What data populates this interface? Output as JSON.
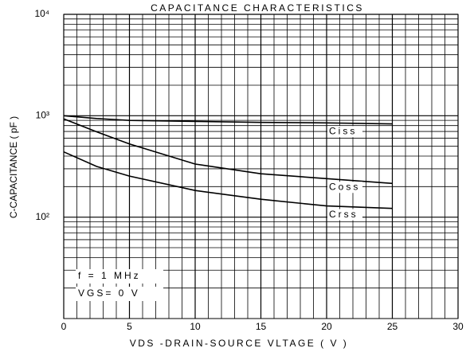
{
  "chart_data": {
    "type": "line",
    "title": "CAPACITANCE CHARACTERISTICS",
    "xlabel": "VDS -DRAIN-SOURCE VLTAGE ( V )",
    "ylabel": "C-CAPACITANCE ( pF )",
    "annotations": [
      "f = 1 MHz",
      "VGS= 0 V"
    ],
    "x": [
      0,
      2.5,
      5,
      10,
      15,
      20,
      25
    ],
    "series": [
      {
        "name": "Ciss",
        "color": "#000000",
        "values": [
          1000,
          940,
          900,
          880,
          860,
          850,
          830
        ]
      },
      {
        "name": "Coss",
        "color": "#000000",
        "values": [
          930,
          694,
          527,
          334,
          268,
          240,
          215
        ]
      },
      {
        "name": "Crss",
        "color": "#000000",
        "values": [
          440,
          316,
          254,
          183,
          150,
          129,
          122
        ]
      }
    ],
    "xlim": [
      0,
      30
    ],
    "xticks": [
      0,
      5,
      10,
      15,
      20,
      25,
      30
    ],
    "ylim": [
      10,
      10000
    ],
    "yticks": [
      {
        "value": 100,
        "label": "10²"
      },
      {
        "value": 1000,
        "label": "10³"
      },
      {
        "value": 10000,
        "label": "10⁴"
      }
    ],
    "log_y": true,
    "grid": true
  }
}
